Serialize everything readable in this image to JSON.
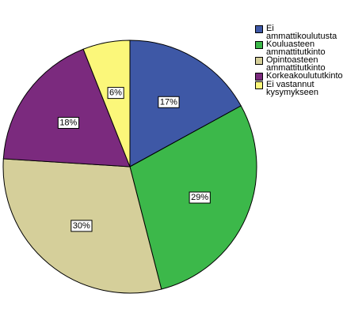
{
  "chart_data": {
    "type": "pie",
    "categories": [
      "Ei ammattikoulutusta",
      "Kouluasteen ammattitutkinto",
      "Opintoasteen ammattitutkinto",
      "Korkeakoulututkinto",
      "Ei vastannut kysymykseen"
    ],
    "values": [
      17,
      29,
      30,
      18,
      6
    ],
    "value_labels": [
      "17%",
      "29%",
      "30%",
      "18%",
      "6%"
    ],
    "colors": [
      "#3e58a6",
      "#3cb84a",
      "#d5cf9a",
      "#7b2a7e",
      "#fbf77a"
    ]
  }
}
